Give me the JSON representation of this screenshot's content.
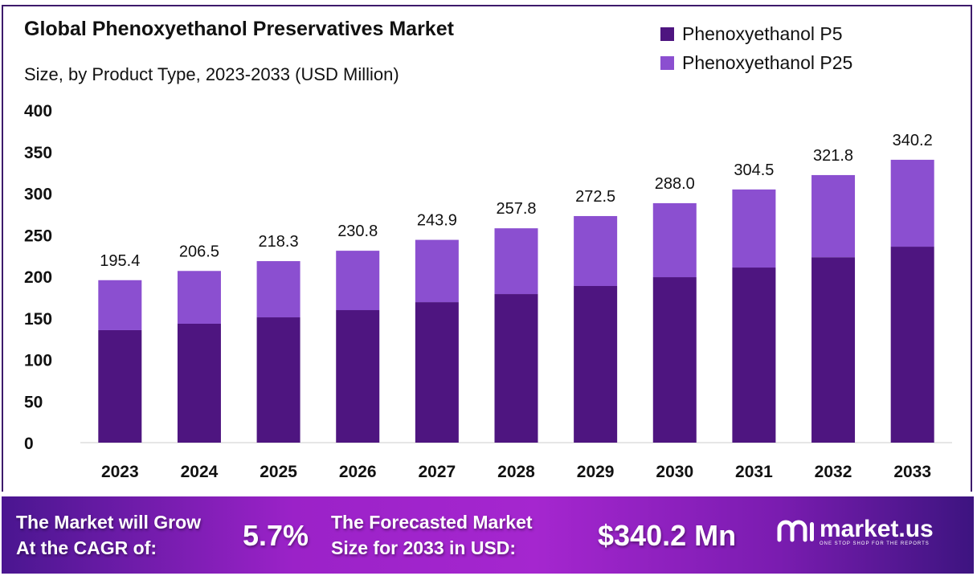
{
  "chart_data": {
    "type": "bar",
    "stacked": true,
    "title": "Global Phenoxyethanol Preservatives Market",
    "subtitle": "Size, by Product Type, 2023-2033 (USD Million)",
    "categories": [
      "2023",
      "2024",
      "2025",
      "2026",
      "2027",
      "2028",
      "2029",
      "2030",
      "2031",
      "2032",
      "2033"
    ],
    "series": [
      {
        "name": "Phenoxyethanol P5",
        "color": "#4e1580",
        "values": [
          135.3,
          143.0,
          150.7,
          159.4,
          169.0,
          178.7,
          188.4,
          199.0,
          210.6,
          223.0,
          235.7
        ]
      },
      {
        "name": "Phenoxyethanol P25",
        "color": "#8b4fd0",
        "values": [
          60.1,
          63.5,
          67.6,
          71.4,
          74.9,
          79.1,
          84.1,
          89.0,
          93.9,
          98.8,
          104.5
        ]
      }
    ],
    "totals": [
      "195.4",
      "206.5",
      "218.3",
      "230.8",
      "243.9",
      "257.8",
      "272.5",
      "288.0",
      "304.5",
      "321.8",
      "340.2"
    ],
    "ylim": [
      0,
      400
    ],
    "yticks": [
      "0",
      "50",
      "100",
      "150",
      "200",
      "250",
      "300",
      "350",
      "400"
    ],
    "grid": false,
    "legend": "top-right"
  },
  "footer": {
    "cagr_label_1": "The Market will Grow",
    "cagr_label_2": "At the CAGR of:",
    "cagr_value": "5.7%",
    "forecast_label_1": "The Forecasted Market",
    "forecast_label_2": "Size for 2033 in USD:",
    "forecast_value": "$340.2 Mn",
    "logo_name": "market.us",
    "logo_tagline": "ONE STOP SHOP FOR THE REPORTS"
  }
}
